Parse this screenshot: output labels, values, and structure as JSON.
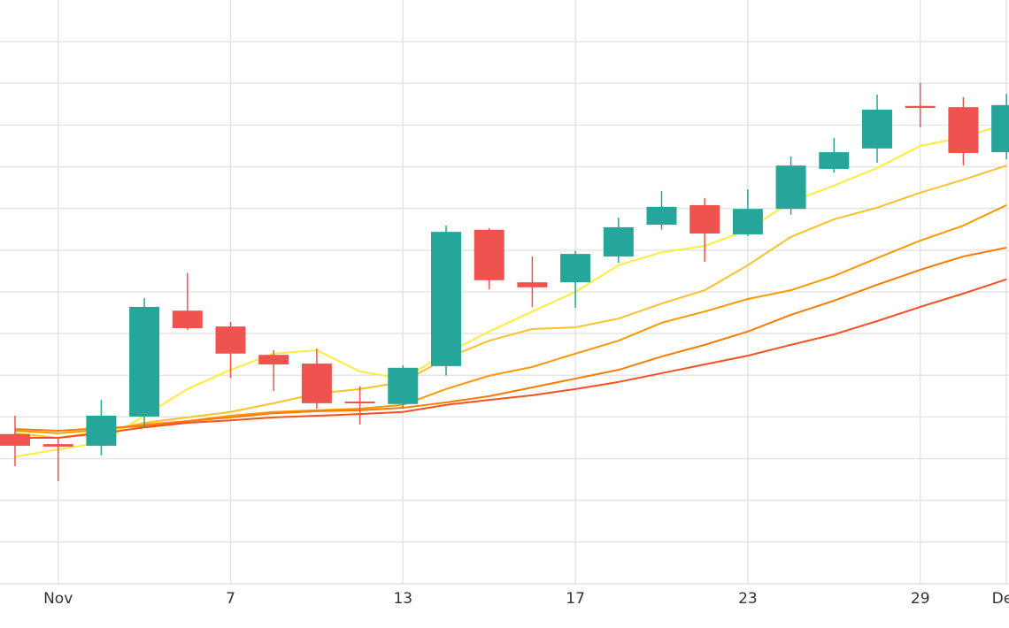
{
  "chart_data": {
    "type": "candlestick",
    "categories": [
      null,
      "Nov",
      null,
      null,
      null,
      "7",
      null,
      null,
      null,
      "13",
      null,
      null,
      null,
      "17",
      null,
      null,
      null,
      "23",
      null,
      null,
      null,
      "29",
      null,
      "Dec"
    ],
    "open": [
      3.59,
      3.35,
      3.31,
      4.01,
      6.55,
      6.17,
      5.49,
      5.28,
      4.37,
      4.31,
      5.22,
      8.49,
      7.23,
      7.23,
      7.85,
      8.61,
      9.08,
      8.38,
      8.99,
      9.95,
      10.44,
      11.46,
      11.43,
      10.35
    ],
    "high": [
      4.03,
      3.5,
      4.41,
      6.85,
      7.45,
      6.28,
      5.6,
      5.64,
      4.73,
      5.24,
      8.59,
      8.53,
      7.85,
      7.98,
      8.78,
      9.42,
      9.25,
      9.46,
      10.25,
      10.69,
      11.73,
      12.01,
      11.67,
      11.75
    ],
    "low": [
      2.82,
      2.46,
      3.08,
      3.75,
      6.09,
      4.94,
      4.62,
      4.2,
      3.82,
      4.2,
      4.99,
      7.06,
      6.64,
      6.62,
      7.7,
      8.49,
      7.72,
      8.34,
      8.85,
      9.86,
      10.1,
      10.95,
      10.03,
      10.18
    ],
    "close": [
      3.31,
      3.29,
      4.03,
      6.64,
      6.13,
      5.52,
      5.26,
      4.33,
      4.33,
      5.18,
      8.44,
      7.28,
      7.11,
      7.91,
      8.55,
      9.04,
      8.4,
      8.99,
      10.03,
      10.35,
      11.37,
      11.41,
      10.33,
      11.48
    ],
    "up_color": "#26a69a",
    "down_color": "#ef5350",
    "series": [
      {
        "color": "#ffeb3b",
        "values": [
          3.05,
          3.22,
          3.39,
          4.03,
          4.67,
          5.13,
          5.52,
          5.6,
          5.09,
          4.92,
          5.52,
          6.05,
          6.53,
          7.0,
          7.64,
          7.95,
          8.1,
          8.49,
          9.16,
          9.55,
          9.97,
          10.5,
          10.71,
          11.03
        ]
      },
      {
        "color": "#fbc02d",
        "values": [
          3.61,
          3.5,
          3.65,
          3.86,
          3.99,
          4.12,
          4.33,
          4.56,
          4.67,
          4.84,
          5.41,
          5.83,
          6.11,
          6.15,
          6.36,
          6.72,
          7.04,
          7.64,
          8.32,
          8.74,
          9.02,
          9.38,
          9.69,
          10.03
        ]
      },
      {
        "color": "#ff9800",
        "values": [
          3.67,
          3.61,
          3.69,
          3.82,
          3.9,
          4.03,
          4.12,
          4.16,
          4.2,
          4.29,
          4.67,
          4.99,
          5.2,
          5.52,
          5.83,
          6.26,
          6.53,
          6.83,
          7.04,
          7.38,
          7.81,
          8.23,
          8.59,
          9.08
        ]
      },
      {
        "color": "#f57c00",
        "values": [
          3.71,
          3.67,
          3.73,
          3.78,
          3.9,
          3.99,
          4.09,
          4.14,
          4.16,
          4.22,
          4.35,
          4.5,
          4.71,
          4.92,
          5.13,
          5.45,
          5.73,
          6.05,
          6.45,
          6.79,
          7.17,
          7.53,
          7.85,
          8.06
        ]
      },
      {
        "color": "#f4511e",
        "values": [
          3.5,
          3.5,
          3.61,
          3.75,
          3.86,
          3.92,
          3.99,
          4.03,
          4.07,
          4.12,
          4.29,
          4.41,
          4.52,
          4.67,
          4.84,
          5.05,
          5.26,
          5.47,
          5.73,
          5.98,
          6.3,
          6.64,
          6.96,
          7.3
        ]
      }
    ],
    "ylim": [
      0,
      14
    ],
    "yticks": [
      1,
      2,
      3,
      4,
      5,
      6,
      7,
      8,
      9,
      10,
      11,
      12,
      13
    ],
    "grid": true
  }
}
